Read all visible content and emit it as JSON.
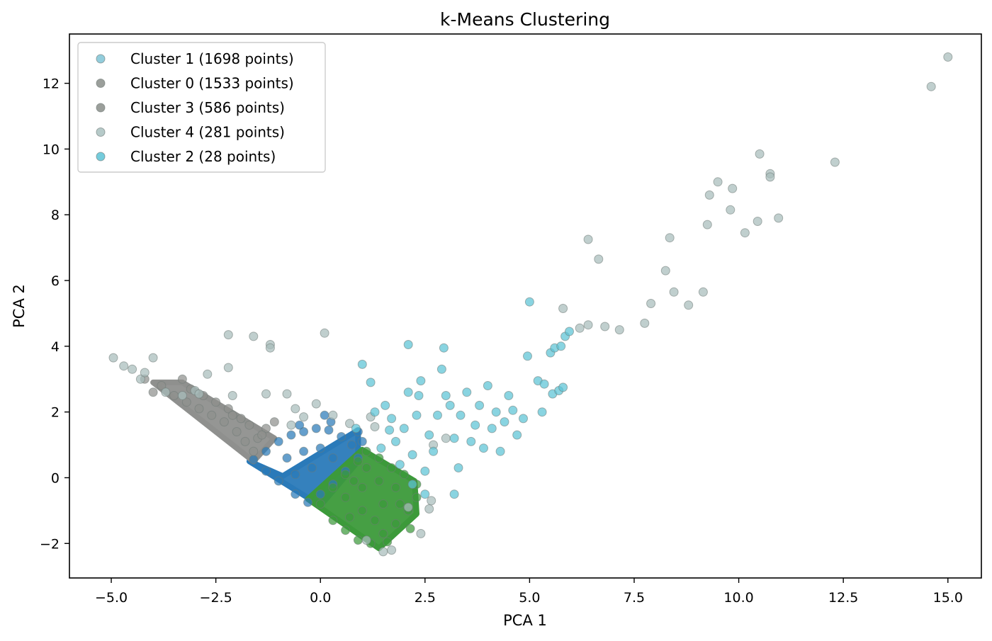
{
  "chart_data": {
    "type": "scatter",
    "title": "k-Means Clustering",
    "xlabel": "PCA 1",
    "ylabel": "PCA 2",
    "xlim": [
      -6.0,
      15.8
    ],
    "ylim": [
      -3.05,
      13.5
    ],
    "xticks": [
      -5.0,
      -2.5,
      0.0,
      2.5,
      5.0,
      7.5,
      10.0,
      12.5,
      15.0
    ],
    "xtick_labels": [
      "−5.0",
      "−2.5",
      "0.0",
      "2.5",
      "5.0",
      "7.5",
      "10.0",
      "12.5",
      "15.0"
    ],
    "yticks": [
      -2,
      0,
      2,
      4,
      6,
      8,
      10,
      12
    ],
    "ytick_labels": [
      "−2",
      "0",
      "2",
      "4",
      "6",
      "8",
      "10",
      "12"
    ],
    "grid": false,
    "legend_position": "top-left",
    "series": [
      {
        "name": "Cluster 1 (1698 points)",
        "color": "#2a7ab9",
        "legend_color": "#7fc4d6",
        "points": [
          [
            -1.6,
            0.55
          ],
          [
            -1.3,
            0.8
          ],
          [
            -1.0,
            1.1
          ],
          [
            -0.7,
            1.3
          ],
          [
            -0.4,
            1.4
          ],
          [
            -0.1,
            1.5
          ],
          [
            0.2,
            1.45
          ],
          [
            0.5,
            1.25
          ],
          [
            0.75,
            1.0
          ],
          [
            0.9,
            0.6
          ],
          [
            0.6,
            0.2
          ],
          [
            0.3,
            -0.2
          ],
          [
            0.0,
            -0.5
          ],
          [
            -0.3,
            -0.75
          ],
          [
            -0.6,
            -0.5
          ],
          [
            -1.0,
            -0.1
          ],
          [
            -1.3,
            0.2
          ],
          [
            -0.8,
            0.6
          ],
          [
            -0.4,
            0.8
          ],
          [
            0.0,
            0.9
          ],
          [
            0.3,
            0.6
          ],
          [
            -0.2,
            0.3
          ],
          [
            -0.6,
            0.1
          ],
          [
            0.1,
            1.9
          ],
          [
            0.25,
            1.7
          ],
          [
            0.9,
            1.4
          ],
          [
            1.0,
            1.1
          ],
          [
            -0.5,
            1.6
          ]
        ]
      },
      {
        "name": "Cluster 0 (1533 points)",
        "color": "#3c9a3a",
        "legend_color": "#8a8e89",
        "points": [
          [
            0.0,
            -0.8
          ],
          [
            0.3,
            -0.3
          ],
          [
            0.6,
            0.1
          ],
          [
            0.9,
            0.5
          ],
          [
            1.1,
            0.8
          ],
          [
            1.4,
            0.6
          ],
          [
            1.7,
            0.3
          ],
          [
            2.0,
            0.1
          ],
          [
            2.3,
            -0.2
          ],
          [
            2.3,
            -0.6
          ],
          [
            2.1,
            -1.0
          ],
          [
            1.8,
            -1.4
          ],
          [
            1.5,
            -1.7
          ],
          [
            1.2,
            -2.0
          ],
          [
            0.9,
            -1.9
          ],
          [
            0.6,
            -1.6
          ],
          [
            0.3,
            -1.3
          ],
          [
            0.6,
            -0.6
          ],
          [
            1.0,
            -0.3
          ],
          [
            1.4,
            -0.1
          ],
          [
            1.8,
            -0.3
          ],
          [
            1.5,
            -0.8
          ],
          [
            1.0,
            -1.0
          ],
          [
            0.7,
            -1.2
          ],
          [
            1.3,
            -1.3
          ],
          [
            1.9,
            -0.8
          ],
          [
            1.1,
            0.3
          ],
          [
            0.8,
            -0.1
          ],
          [
            2.15,
            -1.55
          ],
          [
            1.6,
            -1.95
          ]
        ]
      },
      {
        "name": "Cluster 3 (586 points)",
        "color": "#8f908e",
        "legend_color": "#8a8e89",
        "points": [
          [
            -3.8,
            2.8
          ],
          [
            -3.5,
            2.5
          ],
          [
            -3.2,
            2.3
          ],
          [
            -2.9,
            2.1
          ],
          [
            -2.6,
            1.9
          ],
          [
            -2.3,
            1.7
          ],
          [
            -2.0,
            1.4
          ],
          [
            -1.8,
            1.1
          ],
          [
            -1.6,
            0.8
          ],
          [
            -1.5,
            1.2
          ],
          [
            -1.3,
            1.5
          ],
          [
            -1.1,
            1.7
          ],
          [
            -1.9,
            1.8
          ],
          [
            -2.2,
            2.1
          ],
          [
            -2.5,
            2.3
          ],
          [
            -2.8,
            2.5
          ],
          [
            -3.1,
            2.7
          ],
          [
            -4.0,
            2.6
          ],
          [
            -4.2,
            3.0
          ],
          [
            -3.3,
            3.0
          ],
          [
            -1.7,
            1.6
          ],
          [
            -1.4,
            1.3
          ],
          [
            -2.1,
            1.9
          ]
        ]
      },
      {
        "name": "Cluster 4 (281 points)",
        "color": "#a7bdbb",
        "legend_color": "#a9c1bf",
        "points": [
          [
            -4.95,
            3.65
          ],
          [
            -4.7,
            3.4
          ],
          [
            -4.5,
            3.3
          ],
          [
            -4.3,
            3.0
          ],
          [
            -4.2,
            3.2
          ],
          [
            -4.0,
            3.65
          ],
          [
            -3.7,
            2.6
          ],
          [
            -3.3,
            2.5
          ],
          [
            -3.0,
            2.65
          ],
          [
            -2.7,
            3.15
          ],
          [
            -2.9,
            2.55
          ],
          [
            -2.2,
            4.35
          ],
          [
            -2.2,
            3.35
          ],
          [
            -2.1,
            2.5
          ],
          [
            -1.6,
            4.3
          ],
          [
            -1.3,
            2.55
          ],
          [
            -1.2,
            4.05
          ],
          [
            -1.2,
            3.95
          ],
          [
            -0.8,
            2.55
          ],
          [
            -0.7,
            1.6
          ],
          [
            -0.6,
            2.1
          ],
          [
            -0.4,
            1.85
          ],
          [
            0.1,
            4.4
          ],
          [
            -0.1,
            2.25
          ],
          [
            0.3,
            1.9
          ],
          [
            0.7,
            1.65
          ],
          [
            1.2,
            1.85
          ],
          [
            1.3,
            1.55
          ],
          [
            2.1,
            -0.9
          ],
          [
            2.4,
            -1.7
          ],
          [
            2.6,
            -0.95
          ],
          [
            2.65,
            -0.7
          ],
          [
            1.1,
            -1.9
          ],
          [
            1.5,
            -2.25
          ],
          [
            1.7,
            -2.2
          ],
          [
            6.4,
            7.25
          ],
          [
            6.65,
            6.65
          ],
          [
            6.2,
            4.55
          ],
          [
            6.4,
            4.65
          ],
          [
            6.8,
            4.6
          ],
          [
            7.15,
            4.5
          ],
          [
            7.75,
            4.7
          ],
          [
            7.9,
            5.3
          ],
          [
            8.25,
            6.3
          ],
          [
            8.35,
            7.3
          ],
          [
            8.45,
            5.65
          ],
          [
            8.8,
            5.25
          ],
          [
            9.15,
            5.65
          ],
          [
            9.25,
            7.7
          ],
          [
            9.3,
            8.6
          ],
          [
            9.5,
            9.0
          ],
          [
            9.8,
            8.15
          ],
          [
            9.85,
            8.8
          ],
          [
            10.15,
            7.45
          ],
          [
            10.45,
            7.8
          ],
          [
            10.5,
            9.85
          ],
          [
            10.75,
            9.25
          ],
          [
            10.75,
            9.15
          ],
          [
            10.95,
            7.9
          ],
          [
            12.3,
            9.6
          ],
          [
            14.6,
            11.9
          ],
          [
            15.0,
            12.8
          ],
          [
            5.8,
            5.15
          ],
          [
            3.0,
            1.2
          ],
          [
            2.7,
            1.0
          ]
        ]
      },
      {
        "name": "Cluster 2 (28 points)",
        "color": "#5cc3d6",
        "legend_color": "#5cc3d6",
        "points": [
          [
            1.3,
            2.0
          ],
          [
            1.45,
            0.9
          ],
          [
            1.55,
            2.2
          ],
          [
            1.7,
            1.8
          ],
          [
            1.8,
            1.1
          ],
          [
            1.9,
            0.4
          ],
          [
            2.0,
            1.5
          ],
          [
            2.1,
            2.6
          ],
          [
            2.1,
            4.05
          ],
          [
            2.2,
            0.7
          ],
          [
            2.3,
            1.9
          ],
          [
            2.4,
            2.95
          ],
          [
            2.5,
            0.2
          ],
          [
            2.6,
            1.3
          ],
          [
            2.7,
            0.8
          ],
          [
            2.8,
            1.9
          ],
          [
            2.9,
            3.3
          ],
          [
            2.95,
            3.95
          ],
          [
            3.0,
            2.5
          ],
          [
            3.2,
            1.2
          ],
          [
            3.3,
            0.3
          ],
          [
            3.35,
            1.9
          ],
          [
            3.5,
            2.6
          ],
          [
            3.6,
            1.1
          ],
          [
            3.7,
            1.6
          ],
          [
            3.8,
            2.2
          ],
          [
            3.9,
            0.9
          ],
          [
            4.0,
            2.8
          ],
          [
            4.1,
            1.5
          ],
          [
            4.2,
            2.0
          ],
          [
            4.3,
            0.8
          ],
          [
            4.4,
            1.7
          ],
          [
            4.5,
            2.5
          ],
          [
            4.7,
            1.3
          ],
          [
            4.85,
            1.8
          ],
          [
            4.95,
            3.7
          ],
          [
            5.0,
            5.35
          ],
          [
            5.2,
            2.95
          ],
          [
            5.35,
            2.85
          ],
          [
            5.5,
            3.8
          ],
          [
            5.55,
            2.55
          ],
          [
            5.6,
            3.95
          ],
          [
            5.7,
            2.65
          ],
          [
            5.75,
            4.0
          ],
          [
            5.8,
            2.75
          ],
          [
            5.85,
            4.3
          ],
          [
            5.95,
            4.45
          ],
          [
            1.0,
            3.45
          ],
          [
            1.2,
            2.9
          ],
          [
            2.2,
            -0.2
          ],
          [
            2.5,
            -0.5
          ],
          [
            3.2,
            -0.5
          ],
          [
            0.85,
            1.5
          ],
          [
            1.65,
            1.45
          ],
          [
            2.35,
            2.5
          ],
          [
            3.1,
            2.2
          ],
          [
            4.6,
            2.05
          ],
          [
            5.3,
            2.0
          ]
        ]
      }
    ]
  }
}
